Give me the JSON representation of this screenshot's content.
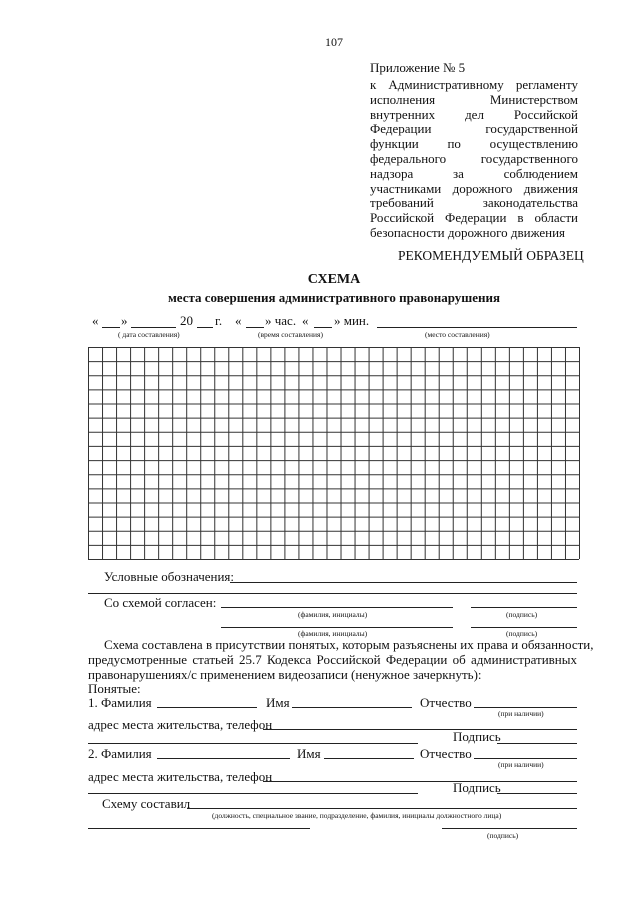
{
  "page_number": "107",
  "appendix": {
    "title": "Приложение № 5",
    "lines": [
      "к Административному регламенту",
      "исполнения Министерством",
      "внутренних дел Российской",
      "Федерации государственной",
      "функции по осуществлению",
      "федерального государственного",
      "надзора за соблюдением",
      "участниками дорожного движения",
      "требований законодательства",
      "Российской Федерации в области",
      "безопасности дорожного движения"
    ]
  },
  "sample_label": "РЕКОМЕНДУЕМЫЙ ОБРАЗЕЦ",
  "title": "СХЕМА",
  "subtitle": "места совершения административного правонарушения",
  "date_line": {
    "q1": "«",
    "q2": "»",
    "year": "20",
    "g": "г.",
    "q3": "«",
    "hours": "» час.",
    "q4": "«",
    "mins": "» мин.",
    "date_hint": "( дата составления)",
    "time_hint": "(время составления)",
    "place_hint": "(место составления)"
  },
  "legend_label": "Условные обозначения:",
  "agreed_label": "Со схемой согласен:",
  "name_hint": "(фамилия, инициалы)",
  "sign_hint": "(подпись)",
  "paragraph": [
    "Схема составлена в присутствии понятых, которым разъяснены их права и обязанности,",
    "предусмотренные статьей 25.7 Кодекса Российской Федерации об административных",
    "правонарушениях/с применением видеозаписи (ненужное зачеркнуть):"
  ],
  "witnesses_label": "Понятые:",
  "w1_surname": "1. Фамилия",
  "w2_surname": "2. Фамилия",
  "first_name": "Имя",
  "patronymic": "Отчество",
  "if_any": "(при наличии)",
  "address": "адрес места жительства, телефон",
  "signature": "Подпись",
  "composed_by": "Схему составил",
  "official_hint": "(должность, специальное звание, подразделение, фамилия, инициалы должностного лица)"
}
